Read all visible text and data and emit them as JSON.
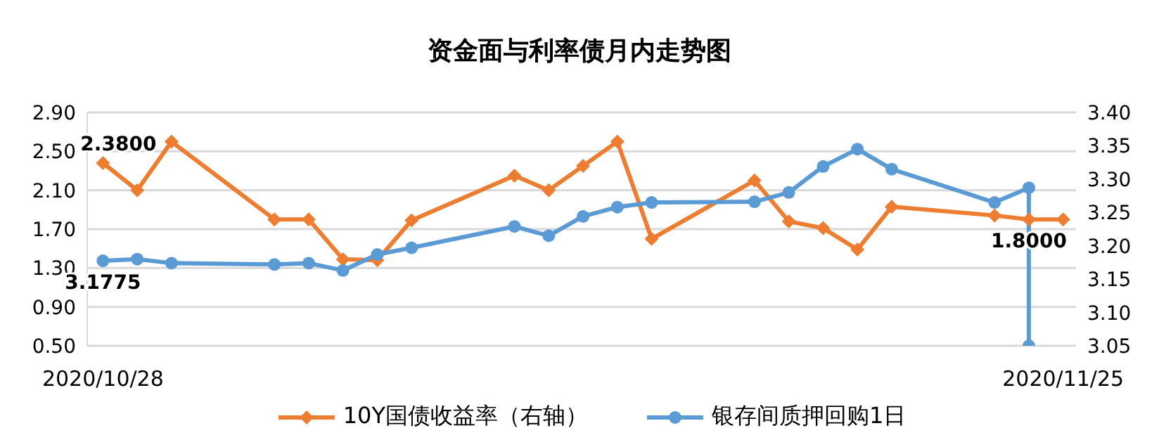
{
  "chart_data": {
    "type": "line",
    "title": "资金面与利率债月内走势图",
    "xlim": [
      "2020-10-27T13:00",
      "2020-11-25T09:00"
    ],
    "xticks": [
      {
        "value": "2020-10-28",
        "label": "2020/10/28"
      },
      {
        "value": "2020-11-25",
        "label": "2020/11/25"
      }
    ],
    "ylim": [
      0.5,
      2.9
    ],
    "yticks": [
      {
        "value": 0.5,
        "label": "0.50"
      },
      {
        "value": 0.9,
        "label": "0.90"
      },
      {
        "value": 1.3,
        "label": "1.30"
      },
      {
        "value": 1.7,
        "label": "1.70"
      },
      {
        "value": 2.1,
        "label": "2.10"
      },
      {
        "value": 2.5,
        "label": "2.50"
      },
      {
        "value": 2.9,
        "label": "2.90"
      }
    ],
    "y2lim": [
      3.05,
      3.4
    ],
    "y2ticks": [
      {
        "value": 3.05,
        "label": "3.05"
      },
      {
        "value": 3.1,
        "label": "3.10"
      },
      {
        "value": 3.15,
        "label": "3.15"
      },
      {
        "value": 3.2,
        "label": "3.20"
      },
      {
        "value": 3.25,
        "label": "3.25"
      },
      {
        "value": 3.3,
        "label": "3.30"
      },
      {
        "value": 3.35,
        "label": "3.35"
      },
      {
        "value": 3.4,
        "label": "3.40"
      }
    ],
    "grid": "y",
    "legend": "bottom",
    "series": [
      {
        "name": "10Y国债收益率（右轴）",
        "color": "#ed7d31",
        "marker": "diamond",
        "x": [
          "2020-10-28",
          "2020-10-29",
          "2020-10-30",
          "2020-11-02",
          "2020-11-03",
          "2020-11-04",
          "2020-11-05",
          "2020-11-06",
          "2020-11-09",
          "2020-11-10",
          "2020-11-11",
          "2020-11-12",
          "2020-11-13",
          "2020-11-16",
          "2020-11-17",
          "2020-11-18",
          "2020-11-19",
          "2020-11-20",
          "2020-11-23",
          "2020-11-24",
          "2020-11-25"
        ],
        "values": [
          2.38,
          2.1,
          2.6,
          1.8,
          1.8,
          1.39,
          1.38,
          1.79,
          2.25,
          2.1,
          2.35,
          2.6,
          1.6,
          2.2,
          1.78,
          1.71,
          1.49,
          1.93,
          1.84,
          1.8,
          1.8
        ],
        "value_labels": [
          "2.3800",
          null,
          null,
          null,
          null,
          null,
          null,
          null,
          null,
          null,
          null,
          null,
          null,
          null,
          null,
          null,
          null,
          null,
          null,
          "1.8000",
          null
        ]
      },
      {
        "name": "银存间质押回购1日",
        "color": "#5b9bd5",
        "marker": "circle",
        "axis": "y2",
        "x": [
          "2020-10-28",
          "2020-10-29",
          "2020-10-30",
          "2020-11-02",
          "2020-11-03",
          "2020-11-04",
          "2020-11-05",
          "2020-11-06",
          "2020-11-09",
          "2020-11-10",
          "2020-11-11",
          "2020-11-12",
          "2020-11-13",
          "2020-11-16",
          "2020-11-17",
          "2020-11-18",
          "2020-11-19",
          "2020-11-20",
          "2020-11-23",
          "2020-11-24",
          "2020-11-24"
        ],
        "values": [
          3.1775,
          3.18,
          3.174,
          3.172,
          3.174,
          3.163,
          3.187,
          3.197,
          3.229,
          3.215,
          3.244,
          3.258,
          3.265,
          3.266,
          3.28,
          3.319,
          3.345,
          3.315,
          3.265,
          3.287,
          3.05
        ],
        "value_labels": [
          "3.1775",
          null,
          null,
          null,
          null,
          null,
          null,
          null,
          null,
          null,
          null,
          null,
          null,
          null,
          null,
          null,
          null,
          null,
          null,
          null,
          null
        ]
      }
    ]
  }
}
